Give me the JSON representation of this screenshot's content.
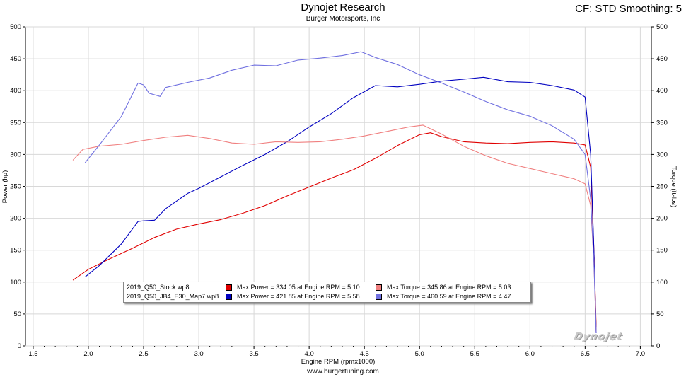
{
  "header": {
    "title": "Dynojet Research",
    "subtitle": "Burger Motorsports, Inc",
    "correction": "CF: STD Smoothing: 5"
  },
  "footer": {
    "url": "www.burgertuning.com"
  },
  "logo": "Dynojet",
  "legend": {
    "rows": [
      {
        "file": "2019_Q50_Stock.wp8",
        "power": "Max Power = 334.05 at Engine RPM = 5.10",
        "torque": "Max Torque = 345.86 at Engine RPM = 5.03",
        "power_color": "#e00000",
        "torque_color": "#f08080"
      },
      {
        "file": "2019_Q50_JB4_E30_Map7.wp8",
        "power": "Max Power = 421.85 at Engine RPM = 5.58",
        "torque": "Max Torque = 460.59 at Engine RPM = 4.47",
        "power_color": "#0000c0",
        "torque_color": "#7070e0"
      }
    ]
  },
  "chart_data": {
    "type": "line",
    "xlabel": "Engine RPM (rpmx1000)",
    "ylabel": "Power (hp)",
    "y2label": "Torque (ft-lbs)",
    "xlim": [
      1.43,
      7.1
    ],
    "ylim": [
      0,
      500
    ],
    "y2lim": [
      0,
      500
    ],
    "xticks": [
      "1.5",
      "2.0",
      "2.5",
      "3.0",
      "3.5",
      "4.0",
      "4.5",
      "5.0",
      "5.5",
      "6.0",
      "6.5",
      "7.0"
    ],
    "yticks": [
      "0",
      "50",
      "100",
      "150",
      "200",
      "250",
      "300",
      "350",
      "400",
      "450",
      "500"
    ],
    "grid": true,
    "series": [
      {
        "name": "2019_Q50_Stock.wp8",
        "quantity": "Power",
        "color": "#e00000",
        "x": [
          1.86,
          2.0,
          2.2,
          2.4,
          2.6,
          2.8,
          3.0,
          3.2,
          3.4,
          3.6,
          3.8,
          4.0,
          4.2,
          4.4,
          4.6,
          4.8,
          5.0,
          5.1,
          5.2,
          5.4,
          5.6,
          5.8,
          6.0,
          6.2,
          6.4,
          6.5,
          6.55,
          6.58,
          6.6
        ],
        "y": [
          103,
          120,
          137,
          153,
          170,
          183,
          191,
          198,
          208,
          220,
          235,
          249,
          263,
          276,
          294,
          314,
          331,
          334,
          328,
          320,
          318,
          317,
          319,
          320,
          318,
          315,
          280,
          150,
          30
        ]
      },
      {
        "name": "2019_Q50_JB4_E30_Map7.wp8",
        "quantity": "Power",
        "color": "#0000c0",
        "x": [
          1.97,
          2.1,
          2.3,
          2.45,
          2.5,
          2.6,
          2.7,
          2.9,
          3.0,
          3.2,
          3.4,
          3.6,
          3.8,
          4.0,
          4.2,
          4.4,
          4.6,
          4.8,
          5.0,
          5.2,
          5.4,
          5.58,
          5.8,
          6.0,
          6.2,
          6.4,
          6.5,
          6.55,
          6.58,
          6.6
        ],
        "y": [
          108,
          126,
          160,
          195,
          196,
          197,
          215,
          239,
          247,
          265,
          283,
          300,
          320,
          343,
          364,
          389,
          408,
          406,
          410,
          415,
          418,
          421,
          414,
          413,
          408,
          401,
          390,
          300,
          150,
          20
        ]
      },
      {
        "name": "2019_Q50_Stock.wp8",
        "quantity": "Torque",
        "color": "#f08080",
        "x": [
          1.86,
          1.95,
          2.1,
          2.3,
          2.5,
          2.7,
          2.9,
          3.1,
          3.3,
          3.5,
          3.7,
          3.9,
          4.1,
          4.3,
          4.5,
          4.7,
          4.9,
          5.03,
          5.2,
          5.4,
          5.6,
          5.8,
          6.0,
          6.2,
          6.4,
          6.5,
          6.55,
          6.58,
          6.6
        ],
        "y": [
          291,
          308,
          313,
          316,
          322,
          327,
          330,
          325,
          318,
          316,
          320,
          319,
          320,
          324,
          329,
          336,
          343,
          346,
          332,
          313,
          298,
          286,
          278,
          270,
          262,
          254,
          220,
          130,
          20
        ]
      },
      {
        "name": "2019_Q50_JB4_E30_Map7.wp8",
        "quantity": "Torque",
        "color": "#7070e0",
        "x": [
          1.97,
          2.1,
          2.3,
          2.45,
          2.5,
          2.55,
          2.65,
          2.7,
          2.9,
          3.1,
          3.3,
          3.5,
          3.7,
          3.9,
          4.1,
          4.3,
          4.47,
          4.6,
          4.8,
          5.0,
          5.2,
          5.4,
          5.6,
          5.8,
          6.0,
          6.2,
          6.4,
          6.5,
          6.55,
          6.58,
          6.6
        ],
        "y": [
          287,
          315,
          360,
          412,
          409,
          396,
          391,
          405,
          413,
          420,
          432,
          440,
          439,
          448,
          451,
          455,
          461,
          452,
          441,
          425,
          412,
          398,
          383,
          370,
          360,
          345,
          324,
          300,
          230,
          130,
          20
        ]
      }
    ]
  }
}
